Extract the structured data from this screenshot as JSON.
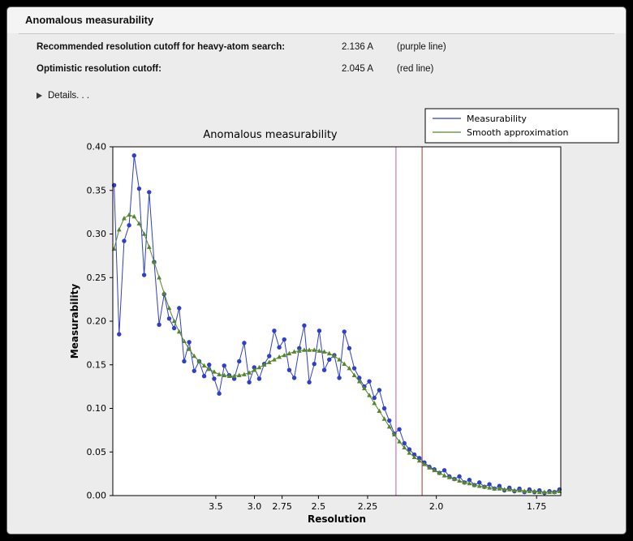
{
  "window": {
    "title": "Anomalous measurability",
    "info": [
      {
        "label": "Recommended resolution cutoff for heavy-atom search:",
        "value": "2.136 A",
        "note": "(purple line)"
      },
      {
        "label": "Optimistic resolution cutoff:",
        "value": "2.045 A",
        "note": "(red line)"
      }
    ],
    "details_label": "Details. . ."
  },
  "chart_data": {
    "type": "line",
    "title": "Anomalous measurability",
    "xlabel": "Resolution",
    "ylabel": "Measurability",
    "x_axis": {
      "scale": "one_over_d_squared",
      "tick_labels_resolution_A": [
        "3.5",
        "3.0",
        "2.75",
        "2.5",
        "2.25",
        "2.0",
        "1.75"
      ],
      "xlim_s2": [
        0.003,
        0.345
      ]
    },
    "y_axis": {
      "ylim": [
        0,
        0.4
      ],
      "tick_step": 0.05
    },
    "points_s2_range": [
      0.004,
      0.344
    ],
    "series": [
      {
        "name": "Measurability",
        "color": "#2f3fc6",
        "marker": "circle",
        "values": [
          0.356,
          0.185,
          0.292,
          0.31,
          0.39,
          0.352,
          0.253,
          0.348,
          0.268,
          0.196,
          0.231,
          0.203,
          0.192,
          0.215,
          0.154,
          0.176,
          0.143,
          0.154,
          0.137,
          0.15,
          0.134,
          0.117,
          0.149,
          0.138,
          0.134,
          0.154,
          0.175,
          0.13,
          0.147,
          0.134,
          0.151,
          0.16,
          0.189,
          0.17,
          0.179,
          0.144,
          0.135,
          0.169,
          0.195,
          0.13,
          0.151,
          0.189,
          0.144,
          0.156,
          0.161,
          0.135,
          0.188,
          0.169,
          0.146,
          0.135,
          0.125,
          0.131,
          0.112,
          0.121,
          0.1,
          0.086,
          0.071,
          0.076,
          0.06,
          0.053,
          0.047,
          0.043,
          0.038,
          0.033,
          0.03,
          0.026,
          0.029,
          0.022,
          0.019,
          0.022,
          0.015,
          0.018,
          0.012,
          0.015,
          0.01,
          0.013,
          0.008,
          0.011,
          0.006,
          0.009,
          0.005,
          0.008,
          0.004,
          0.007,
          0.004,
          0.006,
          0.003,
          0.005,
          0.004,
          0.007
        ]
      },
      {
        "name": "Smooth approximation",
        "color": "#55862a",
        "marker": "triangle",
        "values": [
          0.283,
          0.305,
          0.318,
          0.322,
          0.32,
          0.312,
          0.3,
          0.285,
          0.268,
          0.25,
          0.232,
          0.215,
          0.2,
          0.188,
          0.177,
          0.168,
          0.16,
          0.154,
          0.149,
          0.145,
          0.142,
          0.139,
          0.138,
          0.137,
          0.137,
          0.138,
          0.139,
          0.141,
          0.144,
          0.147,
          0.15,
          0.153,
          0.156,
          0.159,
          0.161,
          0.163,
          0.165,
          0.166,
          0.167,
          0.167,
          0.167,
          0.166,
          0.165,
          0.163,
          0.16,
          0.156,
          0.151,
          0.146,
          0.138,
          0.131,
          0.123,
          0.115,
          0.106,
          0.097,
          0.088,
          0.079,
          0.07,
          0.062,
          0.055,
          0.049,
          0.044,
          0.04,
          0.036,
          0.032,
          0.029,
          0.026,
          0.023,
          0.021,
          0.019,
          0.017,
          0.015,
          0.014,
          0.012,
          0.011,
          0.01,
          0.009,
          0.008,
          0.008,
          0.007,
          0.007,
          0.006,
          0.006,
          0.005,
          0.005,
          0.005,
          0.004,
          0.004,
          0.004,
          0.004,
          0.005
        ]
      }
    ],
    "vlines": [
      {
        "resolution_A": 2.136,
        "color": "#b85cb8",
        "name": "purple line"
      },
      {
        "resolution_A": 2.045,
        "color": "#a33524",
        "name": "red line"
      }
    ],
    "legend": {
      "position": "upper right",
      "entries": [
        "Measurability",
        "Smooth approximation"
      ]
    }
  }
}
